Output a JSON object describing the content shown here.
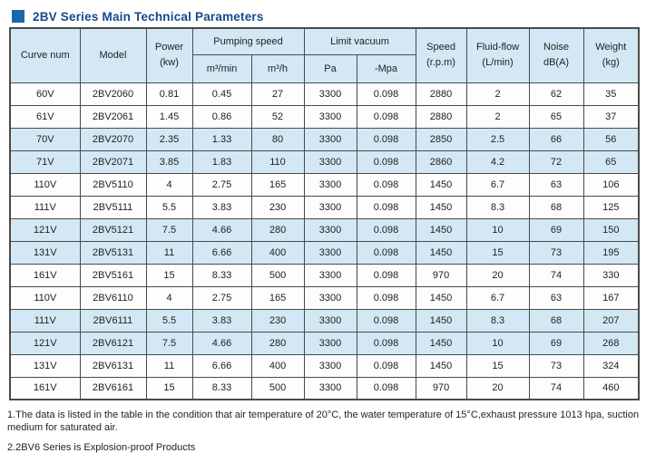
{
  "title": "2BV Series Main Technical Parameters",
  "colors": {
    "accent_square": "#1d65af",
    "title_text": "#16488e",
    "header_bg": "#d3e8f4",
    "shaded_row_bg": "#d3e8f4",
    "border": "#4a4a4a"
  },
  "table": {
    "header": {
      "curve_num": "Curve num",
      "model": "Model",
      "power": {
        "line1": "Power",
        "line2": "(kw)"
      },
      "pumping_speed": "Pumping speed",
      "pumping_sub": {
        "m3min": "m³/min",
        "m3h": "m³/h"
      },
      "limit_vacuum": "Limit vacuum",
      "vacuum_sub": {
        "pa": "Pa",
        "mpa": "-Mpa"
      },
      "speed": {
        "line1": "Speed",
        "line2": "(r.p.m)"
      },
      "fluid_flow": {
        "line1": "Fluid-flow",
        "line2": "(L/min)"
      },
      "noise": {
        "line1": "Noise",
        "line2": "dB(A)"
      },
      "weight": {
        "line1": "Weight",
        "line2": "(kg)"
      }
    },
    "rows": [
      [
        "60V",
        "2BV2060",
        "0.81",
        "0.45",
        "27",
        "3300",
        "0.098",
        "2880",
        "2",
        "62",
        "35"
      ],
      [
        "61V",
        "2BV2061",
        "1.45",
        "0.86",
        "52",
        "3300",
        "0.098",
        "2880",
        "2",
        "65",
        "37"
      ],
      [
        "70V",
        "2BV2070",
        "2.35",
        "1.33",
        "80",
        "3300",
        "0.098",
        "2850",
        "2.5",
        "66",
        "56"
      ],
      [
        "71V",
        "2BV2071",
        "3.85",
        "1.83",
        "110",
        "3300",
        "0.098",
        "2860",
        "4.2",
        "72",
        "65"
      ],
      [
        "110V",
        "2BV5110",
        "4",
        "2.75",
        "165",
        "3300",
        "0.098",
        "1450",
        "6.7",
        "63",
        "106"
      ],
      [
        "111V",
        "2BV5111",
        "5.5",
        "3.83",
        "230",
        "3300",
        "0.098",
        "1450",
        "8.3",
        "68",
        "125"
      ],
      [
        "121V",
        "2BV5121",
        "7.5",
        "4.66",
        "280",
        "3300",
        "0.098",
        "1450",
        "10",
        "69",
        "150"
      ],
      [
        "131V",
        "2BV5131",
        "11",
        "6.66",
        "400",
        "3300",
        "0.098",
        "1450",
        "15",
        "73",
        "195"
      ],
      [
        "161V",
        "2BV5161",
        "15",
        "8.33",
        "500",
        "3300",
        "0.098",
        "970",
        "20",
        "74",
        "330"
      ],
      [
        "110V",
        "2BV6110",
        "4",
        "2.75",
        "165",
        "3300",
        "0.098",
        "1450",
        "6.7",
        "63",
        "167"
      ],
      [
        "111V",
        "2BV6111",
        "5.5",
        "3.83",
        "230",
        "3300",
        "0.098",
        "1450",
        "8.3",
        "68",
        "207"
      ],
      [
        "121V",
        "2BV6121",
        "7.5",
        "4.66",
        "280",
        "3300",
        "0.098",
        "1450",
        "10",
        "69",
        "268"
      ],
      [
        "131V",
        "2BV6131",
        "11",
        "6.66",
        "400",
        "3300",
        "0.098",
        "1450",
        "15",
        "73",
        "324"
      ],
      [
        "161V",
        "2BV6161",
        "15",
        "8.33",
        "500",
        "3300",
        "0.098",
        "970",
        "20",
        "74",
        "460"
      ]
    ]
  },
  "notes": {
    "note1": "1.The data is listed in the table in the condition that air temperature of 20°C, the water temperature of 15°C,exhaust pressure 1013 hpa, suction medium for saturated air.",
    "note2": "2.2BV6 Series is Explosion-proof Products"
  }
}
